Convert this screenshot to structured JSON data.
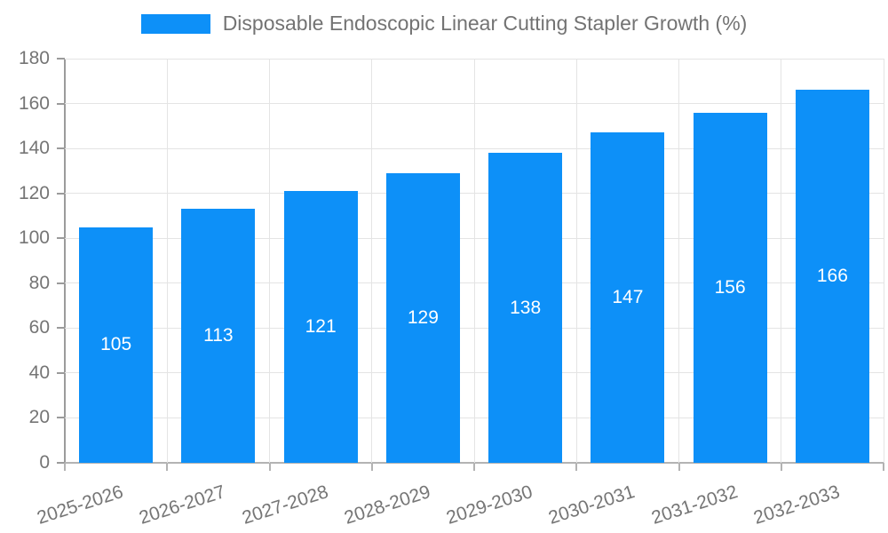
{
  "legend": {
    "label": "Disposable Endoscopic Linear Cutting Stapler Growth (%)"
  },
  "chart_data": {
    "type": "bar",
    "title": "Disposable Endoscopic Linear Cutting Stapler Growth (%)",
    "series_name": "Disposable Endoscopic Linear Cutting Stapler Growth (%)",
    "categories": [
      "2025-2026",
      "2026-2027",
      "2027-2028",
      "2028-2029",
      "2029-2030",
      "2030-2031",
      "2031-2032",
      "2032-2033"
    ],
    "values": [
      105,
      113,
      121,
      129,
      138,
      147,
      156,
      166
    ],
    "xlabel": "",
    "ylabel": "",
    "ylim": [
      0,
      180
    ],
    "ytick_step": 20,
    "yticks": [
      0,
      20,
      40,
      60,
      80,
      100,
      120,
      140,
      160,
      180
    ],
    "grid": true,
    "legend_position": "top",
    "bar_color": "#0d90f8",
    "value_label_color": "#ffffff",
    "axis_text_color": "#757575",
    "legend_text_color": "#737373",
    "gridline_color": "#e4e4e4",
    "y_axis_line_color": "#9b9b9b",
    "x_axis_line_color": "#b3b3b3"
  }
}
